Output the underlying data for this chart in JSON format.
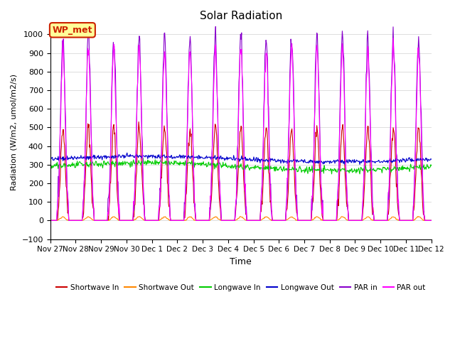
{
  "title": "Solar Radiation",
  "xlabel": "Time",
  "ylabel": "Radiation (W/m2, umol/m2/s)",
  "ylim": [
    -100,
    1050
  ],
  "xlim": [
    0,
    360
  ],
  "yticks": [
    -100,
    0,
    100,
    200,
    300,
    400,
    500,
    600,
    700,
    800,
    900,
    1000
  ],
  "xtick_labels": [
    "Nov 27",
    "Nov 28",
    "Nov 29",
    "Nov 30",
    "Dec 1",
    "Dec 2",
    "Dec 3",
    "Dec 4",
    "Dec 5",
    "Dec 6",
    "Dec 7",
    "Dec 8",
    "Dec 9",
    "Dec 10",
    "Dec 11",
    "Dec 12"
  ],
  "xtick_positions": [
    0,
    24,
    48,
    72,
    96,
    120,
    144,
    168,
    192,
    216,
    240,
    264,
    288,
    312,
    336,
    360
  ],
  "legend_entries": [
    "Shortwave In",
    "Shortwave Out",
    "Longwave In",
    "Longwave Out",
    "PAR in",
    "PAR out"
  ],
  "line_colors": [
    "#cc0000",
    "#ff8800",
    "#00cc00",
    "#0000cc",
    "#8800cc",
    "#ff00ff"
  ],
  "annotation_text": "WP_met",
  "annotation_color": "#cc2200",
  "annotation_bg": "#ffff99",
  "background_color": "#ffffff",
  "grid_color": "#dddddd",
  "num_days": 15,
  "shortwave_in_peak": 500,
  "longwave_in_mean": 290,
  "longwave_out_mean": 330,
  "par_in_peak": 980,
  "par_out_peak": 920,
  "shortwave_out_peak": 20
}
